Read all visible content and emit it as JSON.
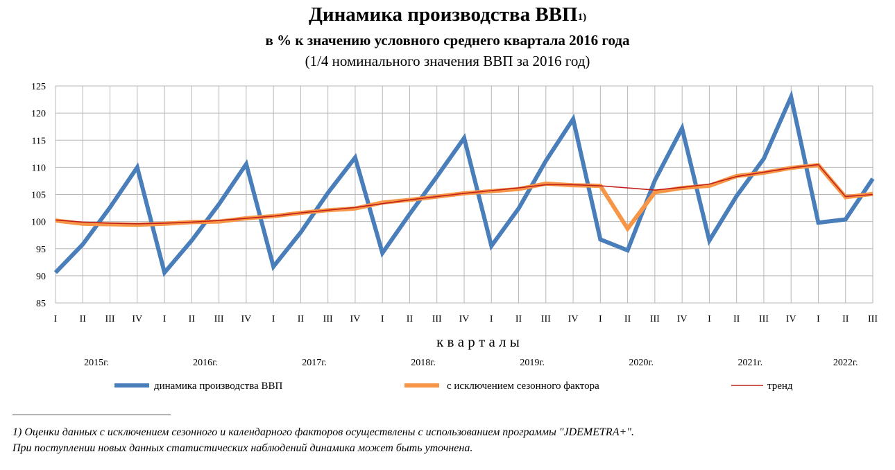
{
  "title": "Динамика производства ВВП",
  "title_sup": "1)",
  "subtitle": "в % к значению условного среднего квартала 2016  года",
  "subtitle2": "(1/4 номинального значения ВВП за 2016 год)",
  "footnote": {
    "line1": "1) Оценки  данных  с   исключением сезонного и календарного факторов осуществлены с  использованием  программы      \"JDEMETRA+\".",
    "line2": "При поступлении новых данных статистических наблюдений динамика может быть уточнена."
  },
  "colors": {
    "gdp": "#4a7ebb",
    "seasonal": "#f79646",
    "trend": "#c0201c",
    "grid": "#b7b7b7"
  },
  "chart_data": {
    "type": "line",
    "xlabel": "к в а р т а л ы",
    "ylim": [
      85,
      125
    ],
    "yticks": [
      85,
      90,
      95,
      100,
      105,
      110,
      115,
      120,
      125
    ],
    "grid": true,
    "legend_position": "bottom",
    "categories": [
      "I",
      "II",
      "III",
      "IV",
      "I",
      "II",
      "III",
      "IV",
      "I",
      "II",
      "III",
      "IV",
      "I",
      "II",
      "III",
      "IV",
      "I",
      "II",
      "III",
      "IV",
      "I",
      "II",
      "III",
      "IV",
      "I",
      "II",
      "III",
      "IV",
      "I",
      "II",
      "III"
    ],
    "years": [
      {
        "label": "2015г.",
        "start": 0,
        "end": 3
      },
      {
        "label": "2016г.",
        "start": 4,
        "end": 7
      },
      {
        "label": "2017г.",
        "start": 8,
        "end": 11
      },
      {
        "label": "2018г.",
        "start": 12,
        "end": 15
      },
      {
        "label": "2019г.",
        "start": 16,
        "end": 19
      },
      {
        "label": "2020г.",
        "start": 20,
        "end": 23
      },
      {
        "label": "2021г.",
        "start": 24,
        "end": 27
      },
      {
        "label": "2022г.",
        "start": 28,
        "end": 30
      }
    ],
    "series": [
      {
        "name": "динамика производства ВВП",
        "key": "gdp",
        "values": [
          90.6,
          95.8,
          102.6,
          110.0,
          90.6,
          96.5,
          103.2,
          110.6,
          91.7,
          98.0,
          105.3,
          111.8,
          94.2,
          101.4,
          108.3,
          115.4,
          95.5,
          102.4,
          111.2,
          118.9,
          96.7,
          94.7,
          107.6,
          117.2,
          96.5,
          104.7,
          111.6,
          123.0,
          99.8,
          100.4,
          107.9
        ]
      },
      {
        "name": "с исключением сезонного фактора",
        "key": "seasonal",
        "values": [
          100.2,
          99.6,
          99.5,
          99.4,
          99.6,
          99.9,
          100.0,
          100.6,
          101.0,
          101.6,
          102.1,
          102.4,
          103.5,
          104.0,
          104.6,
          105.2,
          105.6,
          106.0,
          107.0,
          106.7,
          106.6,
          98.7,
          105.4,
          106.2,
          106.6,
          108.4,
          109.0,
          109.9,
          110.4,
          104.5,
          105.1
        ]
      },
      {
        "name": "тренд",
        "key": "trend",
        "values": [
          100.3,
          99.9,
          99.7,
          99.6,
          99.7,
          99.9,
          100.2,
          100.6,
          101.0,
          101.6,
          102.1,
          102.6,
          103.3,
          104.0,
          104.6,
          105.2,
          105.7,
          106.2,
          106.8,
          106.8,
          106.6,
          106.2,
          105.8,
          106.3,
          106.9,
          108.3,
          109.1,
          109.9,
          110.5,
          104.6,
          105.0
        ]
      }
    ]
  }
}
